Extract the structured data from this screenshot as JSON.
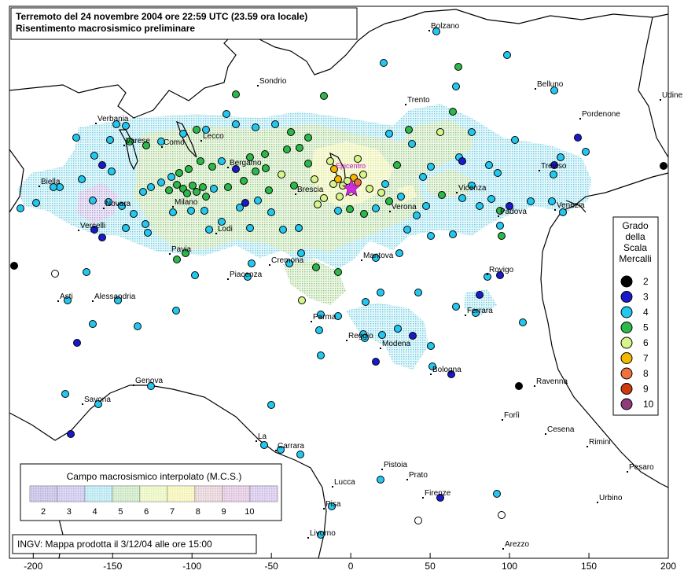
{
  "title": {
    "line1": "Terremoto del 24 novembre 2004 ore 22:59 UTC (23.59 ora locale)",
    "line2": "Risentimento macrosismico preliminare"
  },
  "epicentro_label": "Epicentro",
  "cities": [
    "Bolzano",
    "Sondrio",
    "Trento",
    "Belluno",
    "Pordenone",
    "Udine",
    "Verbania",
    "Varese",
    "Como",
    "Lecco",
    "Bergamo",
    "Biella",
    "Novara",
    "Milano",
    "Brescia",
    "Vicenza",
    "Treviso",
    "Padova",
    "Venezia",
    "Verona",
    "Vercelli",
    "Lodi",
    "Pavia",
    "Cremona",
    "Mantova",
    "Piacenza",
    "Rovigo",
    "Asti",
    "Alessandria",
    "Ferrara",
    "Parma",
    "Reggio",
    "Modena",
    "Bologna",
    "Ravenna",
    "Genova",
    "Savona",
    "Forlì",
    "Cesena",
    "Rimini",
    "La",
    "Carrara",
    "Pistoia",
    "Prato",
    "Lucca",
    "Pesaro",
    "Firenze",
    "Pisa",
    "Urbino",
    "Livorno",
    "Arezzo"
  ],
  "legend_scale": {
    "title_lines": [
      "Grado",
      "della",
      "Scala",
      "Mercalli"
    ],
    "items": [
      {
        "level": "2",
        "color": "#000000"
      },
      {
        "level": "3",
        "color": "#1a1acc"
      },
      {
        "level": "4",
        "color": "#22c8f0"
      },
      {
        "level": "5",
        "color": "#2db84a"
      },
      {
        "level": "6",
        "color": "#d8f58a"
      },
      {
        "level": "7",
        "color": "#f5b800"
      },
      {
        "level": "8",
        "color": "#f07040"
      },
      {
        "level": "9",
        "color": "#cc3a10"
      },
      {
        "level": "10",
        "color": "#8e3d7a"
      }
    ]
  },
  "legend_field": {
    "title": "Campo macrosismico interpolato (M.C.S.)",
    "labels": [
      "2",
      "3",
      "4",
      "5",
      "6",
      "7",
      "8",
      "9",
      "10"
    ],
    "colors": [
      "#b8b8e0",
      "#c8c8f0",
      "#bfe8f2",
      "#cfeacc",
      "#e8f6c8",
      "#f8f4b8",
      "#f8dcc8",
      "#f0c8d8",
      "#d8c8ee"
    ]
  },
  "footer": "INGV: Mappa prodotta il 3/12/04 alle ore 15:00",
  "x_axis": {
    "ticks": [
      "-200",
      "-150",
      "-100",
      "-50",
      "0",
      "50",
      "100",
      "150",
      "200"
    ],
    "range": [
      -215,
      200
    ]
  }
}
